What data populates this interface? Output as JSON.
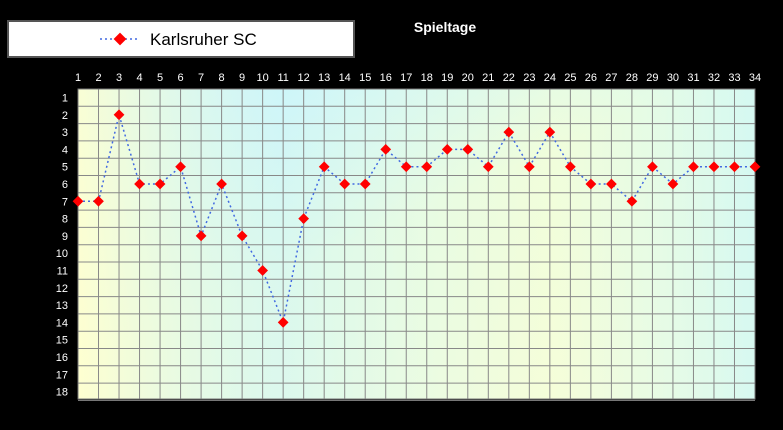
{
  "chart_data": {
    "type": "line",
    "title": "Spieltage",
    "x": [
      1,
      2,
      3,
      4,
      5,
      6,
      7,
      8,
      9,
      10,
      11,
      12,
      13,
      14,
      15,
      16,
      17,
      18,
      19,
      20,
      21,
      22,
      23,
      24,
      25,
      26,
      27,
      28,
      29,
      30,
      31,
      32,
      33,
      34
    ],
    "y_ticks": [
      1,
      2,
      3,
      4,
      5,
      6,
      7,
      8,
      9,
      10,
      11,
      12,
      13,
      14,
      15,
      16,
      17,
      18
    ],
    "ylim": [
      1,
      18
    ],
    "y_inverted": true,
    "x_axis_position": "top",
    "grid": true,
    "legend_position": "top-left",
    "series": [
      {
        "name": "Karlsruher SC",
        "color": "#4169e1",
        "marker_color": "#ff0000",
        "line_style": "dotted",
        "values": [
          7,
          7,
          2,
          6,
          6,
          5,
          9,
          6,
          9,
          11,
          14,
          8,
          5,
          6,
          6,
          4,
          5,
          5,
          4,
          4,
          5,
          3,
          5,
          3,
          5,
          6,
          6,
          7,
          5,
          6,
          5,
          5,
          5,
          5
        ]
      }
    ]
  }
}
